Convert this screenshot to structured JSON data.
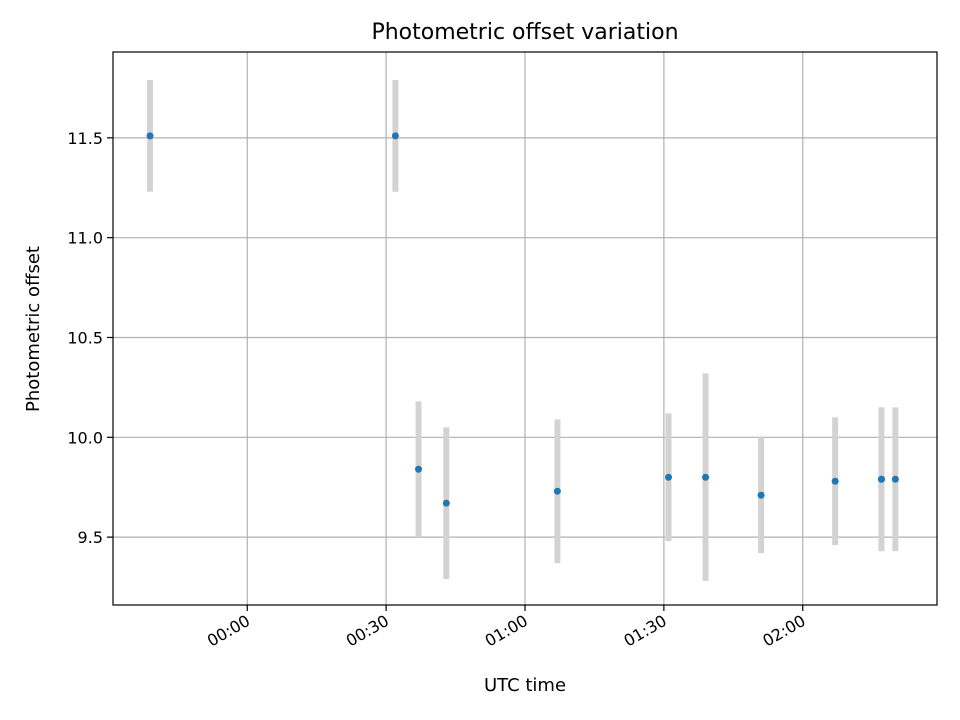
{
  "chart_data": {
    "type": "scatter",
    "title": "Photometric offset variation",
    "xlabel": "UTC time",
    "ylabel": "Photometric offset",
    "x_axis_kind": "time",
    "xlim": [
      "23:31",
      "02:29"
    ],
    "ylim": [
      9.16,
      11.93
    ],
    "grid": true,
    "x_ticks": [
      "00:00",
      "00:30",
      "01:00",
      "01:30",
      "02:00"
    ],
    "y_ticks": [
      "9.5",
      "10.0",
      "10.5",
      "11.0",
      "11.5"
    ],
    "y_tick_values": [
      9.5,
      10.0,
      10.5,
      11.0,
      11.5
    ],
    "point_color": "#1f77b4",
    "errorbar_color": "#d3d3d3",
    "points": [
      {
        "x": "23:39",
        "y": 11.51,
        "err": 0.28
      },
      {
        "x": "00:32",
        "y": 11.51,
        "err": 0.28
      },
      {
        "x": "00:37",
        "y": 9.84,
        "err": 0.34
      },
      {
        "x": "00:43",
        "y": 9.67,
        "err": 0.38
      },
      {
        "x": "01:07",
        "y": 9.73,
        "err": 0.36
      },
      {
        "x": "01:31",
        "y": 9.8,
        "err": 0.32
      },
      {
        "x": "01:39",
        "y": 9.8,
        "err": 0.52
      },
      {
        "x": "01:51",
        "y": 9.71,
        "err": 0.29
      },
      {
        "x": "02:07",
        "y": 9.78,
        "err": 0.32
      },
      {
        "x": "02:17",
        "y": 9.79,
        "err": 0.36
      },
      {
        "x": "02:17",
        "y": 9.79,
        "err": 0.36
      },
      {
        "x": "02:20",
        "y": 9.79,
        "err": 0.36
      }
    ]
  }
}
